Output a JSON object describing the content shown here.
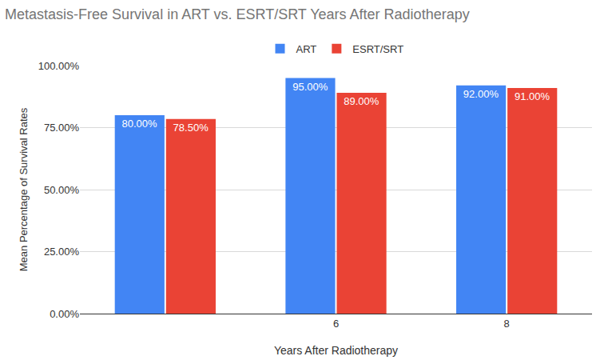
{
  "chart_data": {
    "type": "bar",
    "title": "Metastasis-Free Survival in ART vs. ESRT/SRT Years After Radiotherapy",
    "x_label": "Years After Radiotherapy",
    "y_label": "Mean Percentage of Survival Rates",
    "categories": [
      null,
      "6",
      "8"
    ],
    "series": [
      {
        "name": "ART",
        "color": "#4285f4",
        "values": [
          80,
          95,
          92
        ],
        "value_labels": [
          "80.00%",
          "95.00%",
          "92.00%"
        ]
      },
      {
        "name": "ESRT/SRT",
        "color": "#ea4335",
        "values": [
          78.5,
          89,
          91
        ],
        "value_labels": [
          "78.50%",
          "89.00%",
          "91.00%"
        ]
      }
    ],
    "ylim": [
      0,
      100
    ],
    "yticks": [
      {
        "value": 0,
        "label": "0.00%"
      },
      {
        "value": 25,
        "label": "25.00%"
      },
      {
        "value": 50,
        "label": "50.00%"
      },
      {
        "value": 75,
        "label": "75.00%"
      },
      {
        "value": 100,
        "label": "100.00%"
      }
    ],
    "grid": true,
    "legend": "top",
    "data_labels": true
  }
}
